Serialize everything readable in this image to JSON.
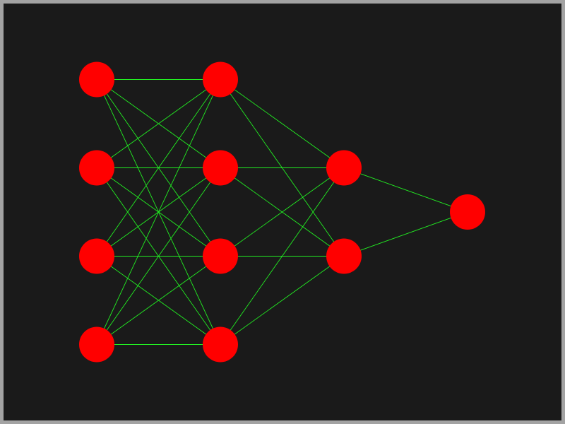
{
  "diagram": {
    "type": "neural-network",
    "layers": [
      4,
      4,
      2,
      1
    ],
    "connectivity": "fully-connected",
    "colors": {
      "background": "#1a1a1a",
      "border": "#a3a3a3",
      "node": "#ff0000",
      "edge": "#22ee22"
    }
  }
}
